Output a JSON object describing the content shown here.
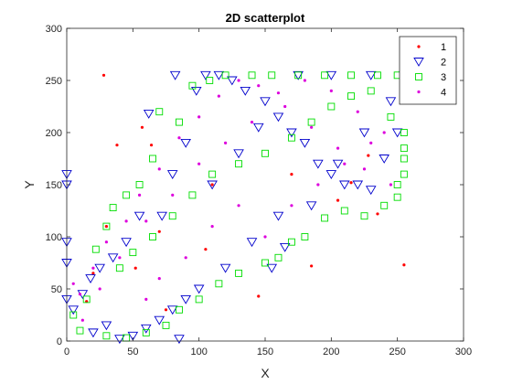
{
  "chart_data": {
    "type": "scatter",
    "title": "2D scatterplot",
    "xlabel": "X",
    "ylabel": "Y",
    "xlim": [
      0,
      300
    ],
    "ylim": [
      0,
      300
    ],
    "xticks": [
      0,
      50,
      100,
      150,
      200,
      250,
      300
    ],
    "yticks": [
      0,
      50,
      100,
      150,
      200,
      250,
      300
    ],
    "grid": false,
    "legend_position": "top-right",
    "series": [
      {
        "name": "1",
        "marker": "dot",
        "color": "#ff0000",
        "points": [
          [
            28,
            255
          ],
          [
            38,
            188
          ],
          [
            57,
            205
          ],
          [
            64,
            188
          ],
          [
            20,
            65
          ],
          [
            30,
            110
          ],
          [
            145,
            43
          ],
          [
            185,
            72
          ],
          [
            205,
            135
          ],
          [
            215,
            152
          ],
          [
            228,
            178
          ],
          [
            235,
            122
          ],
          [
            255,
            73
          ],
          [
            105,
            88
          ],
          [
            15,
            38
          ],
          [
            75,
            30
          ],
          [
            110,
            150
          ],
          [
            170,
            160
          ],
          [
            70,
            105
          ],
          [
            52,
            70
          ]
        ]
      },
      {
        "name": "2",
        "marker": "triangle-down",
        "color": "#0000cc",
        "points": [
          [
            0,
            160
          ],
          [
            0,
            150
          ],
          [
            0,
            95
          ],
          [
            0,
            75
          ],
          [
            0,
            40
          ],
          [
            5,
            30
          ],
          [
            12,
            45
          ],
          [
            18,
            60
          ],
          [
            25,
            70
          ],
          [
            35,
            80
          ],
          [
            45,
            95
          ],
          [
            55,
            120
          ],
          [
            62,
            218
          ],
          [
            72,
            120
          ],
          [
            80,
            160
          ],
          [
            82,
            255
          ],
          [
            90,
            190
          ],
          [
            98,
            240
          ],
          [
            105,
            255
          ],
          [
            115,
            255
          ],
          [
            125,
            250
          ],
          [
            135,
            240
          ],
          [
            145,
            205
          ],
          [
            150,
            230
          ],
          [
            160,
            215
          ],
          [
            170,
            200
          ],
          [
            180,
            190
          ],
          [
            190,
            170
          ],
          [
            200,
            160
          ],
          [
            210,
            150
          ],
          [
            220,
            150
          ],
          [
            230,
            145
          ],
          [
            240,
            175
          ],
          [
            250,
            200
          ],
          [
            255,
            255
          ],
          [
            160,
            120
          ],
          [
            140,
            95
          ],
          [
            120,
            70
          ],
          [
            100,
            50
          ],
          [
            90,
            40
          ],
          [
            80,
            30
          ],
          [
            70,
            20
          ],
          [
            60,
            12
          ],
          [
            50,
            5
          ],
          [
            40,
            2
          ],
          [
            85,
            2
          ],
          [
            20,
            8
          ],
          [
            30,
            15
          ],
          [
            110,
            150
          ],
          [
            130,
            180
          ],
          [
            175,
            255
          ],
          [
            200,
            255
          ],
          [
            230,
            255
          ],
          [
            245,
            230
          ],
          [
            155,
            70
          ],
          [
            165,
            90
          ],
          [
            185,
            130
          ],
          [
            205,
            170
          ],
          [
            225,
            200
          ]
        ]
      },
      {
        "name": "3",
        "marker": "square",
        "color": "#00dd00",
        "points": [
          [
            5,
            25
          ],
          [
            15,
            40
          ],
          [
            22,
            88
          ],
          [
            30,
            110
          ],
          [
            35,
            128
          ],
          [
            45,
            140
          ],
          [
            55,
            150
          ],
          [
            65,
            175
          ],
          [
            70,
            220
          ],
          [
            85,
            210
          ],
          [
            95,
            245
          ],
          [
            108,
            250
          ],
          [
            120,
            255
          ],
          [
            140,
            255
          ],
          [
            155,
            255
          ],
          [
            175,
            255
          ],
          [
            195,
            255
          ],
          [
            215,
            255
          ],
          [
            235,
            255
          ],
          [
            250,
            255
          ],
          [
            255,
            200
          ],
          [
            255,
            160
          ],
          [
            250,
            150
          ],
          [
            240,
            130
          ],
          [
            225,
            120
          ],
          [
            210,
            125
          ],
          [
            195,
            118
          ],
          [
            180,
            100
          ],
          [
            170,
            95
          ],
          [
            160,
            80
          ],
          [
            150,
            75
          ],
          [
            130,
            65
          ],
          [
            115,
            55
          ],
          [
            100,
            40
          ],
          [
            85,
            30
          ],
          [
            75,
            15
          ],
          [
            60,
            8
          ],
          [
            45,
            3
          ],
          [
            30,
            5
          ],
          [
            10,
            10
          ],
          [
            255,
            185
          ],
          [
            245,
            215
          ],
          [
            230,
            240
          ],
          [
            215,
            235
          ],
          [
            200,
            225
          ],
          [
            185,
            210
          ],
          [
            170,
            195
          ],
          [
            150,
            180
          ],
          [
            130,
            170
          ],
          [
            110,
            160
          ],
          [
            95,
            140
          ],
          [
            80,
            120
          ],
          [
            65,
            100
          ],
          [
            50,
            85
          ],
          [
            40,
            70
          ],
          [
            255,
            175
          ],
          [
            250,
            138
          ]
        ]
      },
      {
        "name": "4",
        "marker": "dot",
        "color": "#dd00dd",
        "points": [
          [
            5,
            55
          ],
          [
            10,
            45
          ],
          [
            20,
            70
          ],
          [
            30,
            95
          ],
          [
            45,
            115
          ],
          [
            55,
            140
          ],
          [
            70,
            165
          ],
          [
            85,
            195
          ],
          [
            100,
            215
          ],
          [
            115,
            235
          ],
          [
            130,
            250
          ],
          [
            145,
            245
          ],
          [
            165,
            225
          ],
          [
            185,
            205
          ],
          [
            205,
            185
          ],
          [
            225,
            165
          ],
          [
            245,
            150
          ],
          [
            240,
            200
          ],
          [
            220,
            220
          ],
          [
            200,
            240
          ],
          [
            180,
            250
          ],
          [
            160,
            238
          ],
          [
            140,
            210
          ],
          [
            120,
            190
          ],
          [
            100,
            170
          ],
          [
            80,
            140
          ],
          [
            60,
            115
          ],
          [
            40,
            80
          ],
          [
            25,
            50
          ],
          [
            12,
            20
          ],
          [
            150,
            100
          ],
          [
            170,
            130
          ],
          [
            190,
            150
          ],
          [
            210,
            170
          ],
          [
            230,
            190
          ],
          [
            90,
            80
          ],
          [
            110,
            110
          ],
          [
            130,
            130
          ],
          [
            60,
            40
          ],
          [
            70,
            60
          ]
        ]
      }
    ]
  }
}
